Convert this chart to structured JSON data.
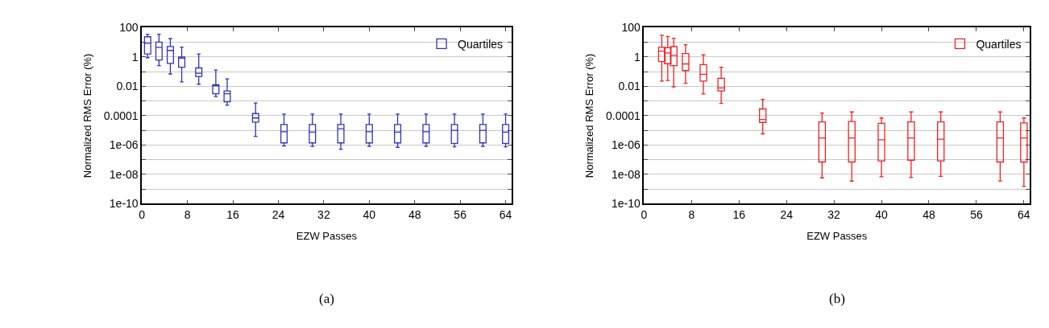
{
  "chart_data": [
    {
      "type": "box",
      "title": "(a)",
      "xlabel": "EZW Passes",
      "ylabel": "Normalized RMS Error (%)",
      "log": "y",
      "grid": "y",
      "legend": "top right",
      "xlim": [
        0,
        65
      ],
      "xticks": [
        0,
        8,
        16,
        24,
        32,
        40,
        48,
        56,
        64
      ],
      "ylim": [
        1e-10,
        100
      ],
      "yticks": [
        100,
        {
          "value": 10,
          "label": null
        },
        1,
        {
          "value": 0.1,
          "label": null
        },
        0.01,
        {
          "value": 0.001,
          "label": null
        },
        0.0001,
        {
          "value": 1e-05,
          "label": null
        },
        {
          "value": 1e-06,
          "label": "1e-06"
        },
        {
          "value": 1e-07,
          "label": null
        },
        {
          "value": 1e-08,
          "label": "1e-08"
        },
        {
          "value": 1e-09,
          "label": null
        },
        {
          "value": 1e-10,
          "label": "1e-10"
        }
      ],
      "series": [
        {
          "name": "Quartiles",
          "color": "#3333bb",
          "x": [
            1,
            3,
            5,
            7,
            10,
            13,
            15,
            20,
            25,
            30,
            35,
            40,
            45,
            50,
            55,
            60,
            64
          ],
          "boxes": [
            {
              "low": 0.9,
              "q1": 1.6,
              "median": 8.5,
              "q3": 24,
              "high": 36
            },
            {
              "low": 0.26,
              "q1": 0.62,
              "median": 4.6,
              "q3": 10.5,
              "high": 36
            },
            {
              "low": 0.07,
              "q1": 0.37,
              "median": 2.8,
              "q3": 5.2,
              "high": 18
            },
            {
              "low": 0.02,
              "q1": 0.2,
              "median": 0.83,
              "q3": 1.0,
              "high": 4.7
            },
            {
              "low": 0.014,
              "q1": 0.047,
              "median": 0.078,
              "q3": 0.18,
              "high": 1.6
            },
            {
              "low": 0.002,
              "q1": 0.0031,
              "median": 0.011,
              "q3": 0.013,
              "high": 0.13
            },
            {
              "low": 0.00052,
              "q1": 0.00089,
              "median": 0.0031,
              "q3": 0.0049,
              "high": 0.032
            },
            {
              "low": 3.9e-06,
              "q1": 3.7e-05,
              "median": 7e-05,
              "q3": 0.00014,
              "high": 0.00074
            },
            {
              "low": 8.5e-07,
              "q1": 1.4e-06,
              "median": 8e-06,
              "q3": 2.5e-05,
              "high": 0.00013
            },
            {
              "low": 8e-07,
              "q1": 1.4e-06,
              "median": 7.5e-06,
              "q3": 2.5e-05,
              "high": 0.00013
            },
            {
              "low": 5.2e-07,
              "q1": 1.4e-06,
              "median": 1.3e-05,
              "q3": 2.5e-05,
              "high": 0.00013
            },
            {
              "low": 8e-07,
              "q1": 1.4e-06,
              "median": 8e-06,
              "q3": 2.5e-05,
              "high": 0.00013
            },
            {
              "low": 7e-07,
              "q1": 1.4e-06,
              "median": 7.5e-06,
              "q3": 2.5e-05,
              "high": 0.00013
            },
            {
              "low": 8e-07,
              "q1": 1.4e-06,
              "median": 8e-06,
              "q3": 2.5e-05,
              "high": 0.00013
            },
            {
              "low": 7.5e-07,
              "q1": 1.3e-06,
              "median": 1e-05,
              "q3": 2.5e-05,
              "high": 0.00013
            },
            {
              "low": 8e-07,
              "q1": 1.4e-06,
              "median": 1e-05,
              "q3": 2.5e-05,
              "high": 0.00013
            },
            {
              "low": 7.5e-07,
              "q1": 1.3e-06,
              "median": 7.5e-06,
              "q3": 2.5e-05,
              "high": 0.00013
            }
          ]
        }
      ]
    },
    {
      "type": "box",
      "title": "(b)",
      "xlabel": "EZW Passes",
      "ylabel": "Normalized RMS Error (%)",
      "log": "y",
      "grid": "y",
      "legend": "top right",
      "xlim": [
        0,
        65
      ],
      "xticks": [
        0,
        8,
        16,
        24,
        32,
        40,
        48,
        56,
        64
      ],
      "ylim": [
        1e-10,
        100
      ],
      "yticks": [
        100,
        {
          "value": 10,
          "label": null
        },
        1,
        {
          "value": 0.1,
          "label": null
        },
        0.01,
        {
          "value": 0.001,
          "label": null
        },
        0.0001,
        {
          "value": 1e-05,
          "label": null
        },
        {
          "value": 1e-06,
          "label": "1e-06"
        },
        {
          "value": 1e-07,
          "label": null
        },
        {
          "value": 1e-08,
          "label": "1e-08"
        },
        {
          "value": 1e-09,
          "label": null
        },
        {
          "value": 1e-10,
          "label": "1e-10"
        }
      ],
      "series": [
        {
          "name": "Quartiles",
          "color": "#ee2222",
          "x": [
            3,
            4,
            5,
            7,
            10,
            13,
            20,
            30,
            35,
            40,
            45,
            50,
            60,
            64
          ],
          "boxes": [
            {
              "low": 0.023,
              "q1": 0.49,
              "median": 2.5,
              "q3": 4.6,
              "high": 30
            },
            {
              "low": 0.025,
              "q1": 0.35,
              "median": 1.9,
              "q3": 4.3,
              "high": 25
            },
            {
              "low": 0.0093,
              "q1": 0.26,
              "median": 1.3,
              "q3": 5.1,
              "high": 19
            },
            {
              "low": 0.016,
              "q1": 0.12,
              "median": 0.34,
              "q3": 1.7,
              "high": 6.9
            },
            {
              "low": 0.003,
              "q1": 0.023,
              "median": 0.066,
              "q3": 0.3,
              "high": 1.4
            },
            {
              "low": 0.00069,
              "q1": 0.0049,
              "median": 0.0078,
              "q3": 0.036,
              "high": 0.2
            },
            {
              "low": 5.8e-06,
              "q1": 3.5e-05,
              "median": 5.5e-05,
              "q3": 0.00029,
              "high": 0.0013
            },
            {
              "low": 5.8e-09,
              "q1": 7e-08,
              "median": 3e-06,
              "q3": 3.8e-05,
              "high": 0.00015
            },
            {
              "low": 3.5e-09,
              "q1": 7e-08,
              "median": 3e-06,
              "q3": 4e-05,
              "high": 0.00018
            },
            {
              "low": 6.9e-09,
              "q1": 8.3e-08,
              "median": 2.3e-06,
              "q3": 3e-05,
              "high": 7e-05
            },
            {
              "low": 6.2e-09,
              "q1": 9.3e-08,
              "median": 3e-06,
              "q3": 3.8e-05,
              "high": 0.00018
            },
            {
              "low": 7.4e-09,
              "q1": 8.3e-08,
              "median": 2.5e-06,
              "q3": 3.8e-05,
              "high": 0.00018
            },
            {
              "low": 3.6e-09,
              "q1": 7e-08,
              "median": 3e-06,
              "q3": 3.8e-05,
              "high": 0.00018
            },
            {
              "low": 1.5e-09,
              "q1": 7e-08,
              "median": 3e-06,
              "q3": 3.2e-05,
              "high": 7e-05
            }
          ]
        }
      ]
    }
  ]
}
